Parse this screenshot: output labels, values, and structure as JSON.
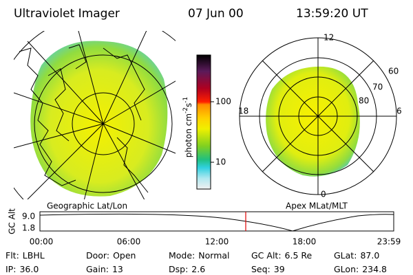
{
  "header": {
    "title": "Ultraviolet Imager",
    "date": "07 Jun 00",
    "time": "13:59:20 UT"
  },
  "colorbar": {
    "label": "photon cm",
    "exp1": "-2",
    "unit2": "s",
    "exp2": "-1",
    "ticks": [
      "100",
      "10"
    ]
  },
  "left_panel": {
    "caption": "Geographic Lat/Lon"
  },
  "right_panel": {
    "caption": "Apex MLat/MLT",
    "mlt_labels": [
      "12",
      "18",
      "6",
      "0"
    ],
    "lat_labels": [
      "60",
      "70",
      "80"
    ]
  },
  "altitude_plot": {
    "ylabel": "GC Alt",
    "yticks": [
      "9.0",
      "1.8"
    ],
    "xticks": [
      "00:00",
      "06:00",
      "12:00",
      "18:00",
      "23:59"
    ]
  },
  "status": [
    [
      {
        "label": "Flt:",
        "value": "LBHL"
      },
      {
        "label": "Door:",
        "value": "Open"
      },
      {
        "label": "Mode:",
        "value": "Normal"
      },
      {
        "label": "GC Alt:",
        "value": "6.5 Re"
      },
      {
        "label": "GLat:",
        "value": "87.0"
      }
    ],
    [
      {
        "label": "IP:",
        "value": "36.0"
      },
      {
        "label": "Gain:",
        "value": "13"
      },
      {
        "label": "Dsp:",
        "value": "2.6"
      },
      {
        "label": "Seq:",
        "value": "39"
      },
      {
        "label": "GLon:",
        "value": "234.8"
      }
    ]
  ]
}
